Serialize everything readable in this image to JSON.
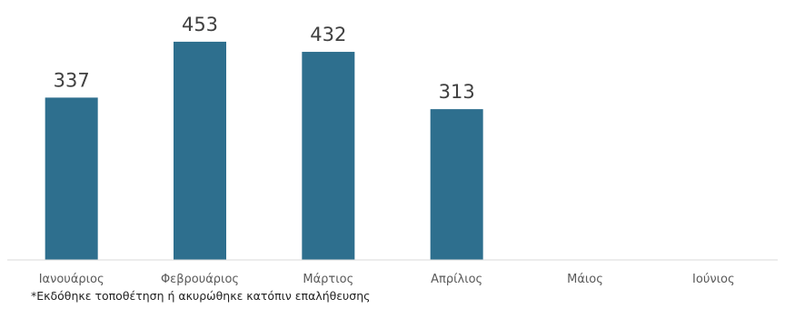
{
  "chart_data": {
    "type": "bar",
    "categories": [
      "Ιανουάριος",
      "Φεβρουάριος",
      "Μάρτιος",
      "Απρίλιος",
      "Μάιος",
      "Ιούνιος"
    ],
    "values": [
      337,
      453,
      432,
      313,
      null,
      null
    ],
    "data_labels": [
      "337",
      "453",
      "432",
      "313",
      "",
      ""
    ],
    "ylim": [
      0,
      510
    ],
    "grid": false,
    "legend": "none",
    "bar_color": "#2e6f8e",
    "axis_color": "#d9d9d9"
  },
  "footnote": "*Εκδόθηκε τοποθέτηση ή ακυρώθηκε κατόπιν επαλήθευσης"
}
